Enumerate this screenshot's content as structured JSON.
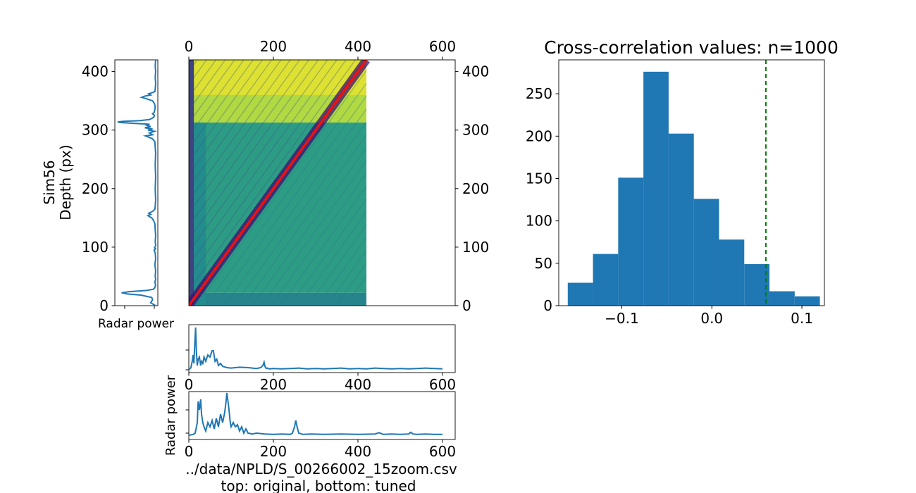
{
  "colors": {
    "trace": "#1f77b4",
    "hist_bar": "#1f77b4",
    "diagonal": "#ee1111",
    "threshold_line": "#008000",
    "heatmap_colormap": "viridis"
  },
  "chart_data": [
    {
      "type": "line",
      "name": "left-trace",
      "ylabel_line1": "Sim56",
      "ylabel_line2": "Depth (px)",
      "xlabel": "Radar power",
      "ylim": [
        0,
        420
      ],
      "yticks": [
        0,
        100,
        200,
        300,
        400
      ],
      "depth": [
        0,
        5,
        10,
        14,
        18,
        20,
        22,
        24,
        26,
        28,
        30,
        35,
        40,
        45,
        50,
        60,
        70,
        80,
        90,
        95,
        97,
        99,
        101,
        103,
        110,
        120,
        130,
        140,
        145,
        150,
        152,
        154,
        156,
        158,
        160,
        162,
        165,
        170,
        180,
        200,
        220,
        240,
        260,
        280,
        285,
        288,
        290,
        292,
        295,
        298,
        300,
        302,
        304,
        306,
        308,
        310,
        312,
        313,
        314,
        315,
        316,
        318,
        320,
        322,
        325,
        328,
        330,
        335,
        340,
        345,
        350,
        354,
        356,
        358,
        360,
        362,
        364,
        366,
        370,
        380,
        390,
        400,
        410,
        420
      ],
      "power": [
        0.98,
        0.85,
        0.9,
        0.88,
        0.6,
        0.25,
        0.1,
        0.3,
        0.75,
        0.92,
        0.95,
        0.98,
        0.96,
        0.98,
        0.97,
        0.98,
        0.96,
        0.98,
        0.97,
        0.94,
        0.98,
        0.95,
        0.97,
        0.98,
        0.97,
        0.98,
        0.97,
        0.96,
        0.93,
        0.88,
        0.82,
        0.78,
        0.85,
        0.8,
        0.87,
        0.92,
        0.96,
        0.97,
        0.98,
        0.97,
        0.98,
        0.97,
        0.98,
        0.96,
        0.9,
        0.8,
        0.72,
        0.9,
        0.82,
        0.95,
        0.78,
        0.9,
        0.7,
        0.85,
        0.75,
        0.82,
        0.3,
        0.05,
        0.0,
        0.15,
        0.55,
        0.82,
        0.88,
        0.93,
        0.95,
        0.9,
        0.94,
        0.96,
        0.97,
        0.95,
        0.9,
        0.72,
        0.62,
        0.7,
        0.85,
        0.8,
        0.9,
        0.96,
        0.97,
        0.98,
        0.97,
        0.98,
        0.97,
        0.98
      ]
    },
    {
      "type": "heatmap",
      "name": "cross-correlation-matrix",
      "colormap": "viridis",
      "extent_x": [
        0,
        420
      ],
      "extent_y": [
        0,
        420
      ],
      "xlim": [
        0,
        630
      ],
      "ylim": [
        0,
        420
      ],
      "xticks": [
        0,
        200,
        400,
        600
      ],
      "yticks": [
        0,
        100,
        200,
        300,
        400
      ],
      "regions": [
        {
          "x": [
            0,
            420
          ],
          "y": [
            0,
            22
          ],
          "value": 0.45
        },
        {
          "x": [
            0,
            420
          ],
          "y": [
            22,
            313
          ],
          "value": 0.55
        },
        {
          "x": [
            0,
            420
          ],
          "y": [
            313,
            420
          ],
          "value": 0.88
        },
        {
          "x": [
            0,
            420
          ],
          "y": [
            360,
            420
          ],
          "value": 0.95
        },
        {
          "x": [
            0,
            12
          ],
          "y": [
            0,
            420
          ],
          "value": 0.2
        },
        {
          "x": [
            12,
            40
          ],
          "y": [
            0,
            313
          ],
          "value": 0.48
        }
      ],
      "diagonal": [
        [
          0,
          0
        ],
        [
          420,
          420
        ]
      ]
    },
    {
      "type": "line",
      "name": "bottom-trace-original",
      "xlim": [
        0,
        630
      ],
      "xticks": [
        0,
        200,
        400,
        600
      ],
      "x": [
        0,
        5,
        8,
        10,
        12,
        14,
        16,
        18,
        20,
        22,
        25,
        28,
        30,
        33,
        36,
        40,
        45,
        50,
        55,
        58,
        62,
        66,
        70,
        75,
        80,
        90,
        100,
        120,
        140,
        160,
        170,
        175,
        178,
        180,
        183,
        186,
        190,
        200,
        220,
        240,
        260,
        280,
        300,
        320,
        340,
        360,
        380,
        400,
        420,
        440,
        460,
        480,
        500,
        520,
        540,
        560,
        580,
        600
      ],
      "y": [
        0.0,
        0.05,
        0.2,
        0.35,
        0.15,
        0.6,
        1.0,
        0.4,
        0.1,
        0.25,
        0.3,
        0.1,
        0.2,
        0.15,
        0.3,
        0.2,
        0.35,
        0.3,
        0.45,
        0.45,
        0.2,
        0.25,
        0.1,
        0.15,
        0.08,
        0.05,
        0.04,
        0.06,
        0.05,
        0.03,
        0.05,
        0.1,
        0.18,
        0.08,
        0.03,
        0.04,
        0.02,
        0.03,
        0.02,
        0.03,
        0.04,
        0.02,
        0.03,
        0.02,
        0.03,
        0.04,
        0.02,
        0.03,
        0.02,
        0.04,
        0.03,
        0.02,
        0.03,
        0.02,
        0.03,
        0.04,
        0.03,
        0.02
      ]
    },
    {
      "type": "line",
      "name": "bottom-trace-tuned",
      "ylabel": "Radar power",
      "xlabel_line1": "../data/NPLD/S_00266002_15zoom.csv",
      "xlabel_line2": "top: original, bottom: tuned",
      "xlim": [
        0,
        630
      ],
      "xticks": [
        0,
        200,
        400,
        600
      ],
      "x": [
        0,
        10,
        15,
        20,
        22,
        25,
        28,
        30,
        33,
        36,
        40,
        45,
        50,
        55,
        60,
        65,
        70,
        75,
        80,
        85,
        88,
        90,
        92,
        95,
        98,
        100,
        105,
        110,
        115,
        120,
        125,
        130,
        135,
        140,
        150,
        160,
        170,
        180,
        200,
        220,
        240,
        245,
        250,
        253,
        256,
        260,
        270,
        290,
        320,
        360,
        400,
        440,
        450,
        455,
        460,
        480,
        500,
        520,
        525,
        530,
        540,
        560,
        580,
        600
      ],
      "y": [
        0.0,
        0.02,
        0.05,
        0.3,
        0.8,
        0.6,
        0.85,
        0.5,
        0.3,
        0.2,
        0.1,
        0.3,
        0.2,
        0.35,
        0.15,
        0.4,
        0.2,
        0.5,
        0.3,
        0.55,
        0.8,
        1.0,
        0.85,
        0.6,
        0.3,
        0.2,
        0.3,
        0.2,
        0.25,
        0.1,
        0.2,
        0.05,
        0.15,
        0.05,
        0.03,
        0.05,
        0.04,
        0.03,
        0.02,
        0.03,
        0.02,
        0.05,
        0.2,
        0.35,
        0.2,
        0.05,
        0.02,
        0.03,
        0.02,
        0.03,
        0.02,
        0.03,
        0.06,
        0.04,
        0.02,
        0.03,
        0.02,
        0.03,
        0.07,
        0.03,
        0.02,
        0.03,
        0.02,
        0.02
      ]
    },
    {
      "type": "bar",
      "name": "cross-correlation-histogram",
      "title": "Cross-correlation values: n=1000",
      "bin_edges": [
        -0.16,
        -0.132,
        -0.104,
        -0.076,
        -0.048,
        -0.02,
        0.008,
        0.036,
        0.064,
        0.092,
        0.12
      ],
      "values": [
        27,
        61,
        151,
        276,
        203,
        126,
        78,
        49,
        17,
        11
      ],
      "threshold_x": 0.06,
      "xlim": [
        -0.17,
        0.125
      ],
      "ylim": [
        0,
        290
      ],
      "xticks": [
        -0.1,
        0.0,
        0.1
      ],
      "xtick_labels": [
        "−0.1",
        "0.0",
        "0.1"
      ],
      "yticks": [
        0,
        50,
        100,
        150,
        200,
        250
      ]
    }
  ]
}
